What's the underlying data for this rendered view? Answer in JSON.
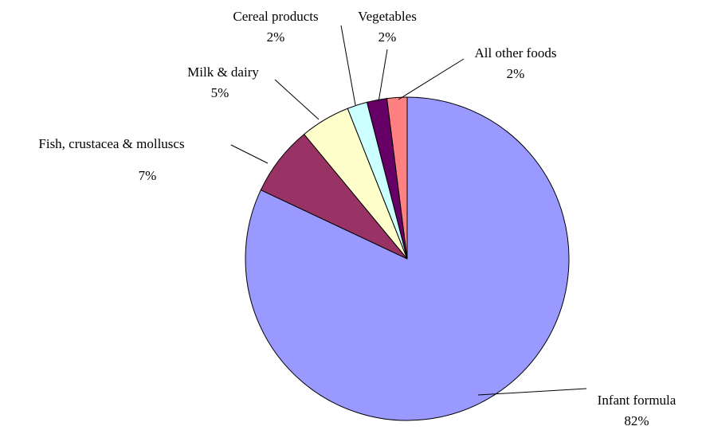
{
  "chart_data": {
    "type": "pie",
    "categories": [
      "Infant formula",
      "Fish, crustacea & molluscs",
      "Milk & dairy",
      "Cereal products",
      "Vegetables",
      "All other foods"
    ],
    "values": [
      82,
      7,
      5,
      2,
      2,
      2
    ],
    "value_labels": [
      "82%",
      "7%",
      "5%",
      "2%",
      "2%",
      "2%"
    ],
    "colors": [
      "#9999ff",
      "#993366",
      "#ffffcc",
      "#ccffff",
      "#660066",
      "#ff8080"
    ]
  }
}
